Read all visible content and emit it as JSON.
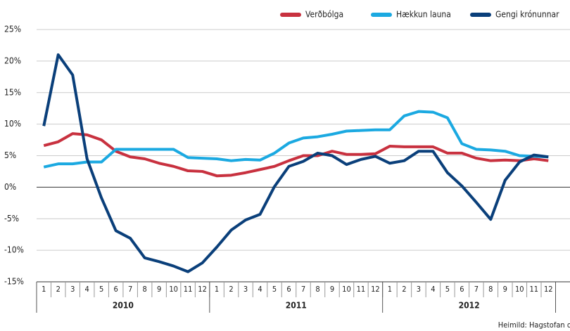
{
  "chart_data": {
    "type": "line",
    "source": "Heimild: Hagstofan og Seðlabankinn",
    "categories": [
      "1",
      "2",
      "3",
      "4",
      "5",
      "6",
      "7",
      "8",
      "9",
      "10",
      "11",
      "12",
      "1",
      "2",
      "3",
      "4",
      "5",
      "6",
      "7",
      "8",
      "9",
      "10",
      "11",
      "12",
      "1",
      "2",
      "3",
      "4",
      "5",
      "6",
      "7",
      "8",
      "9",
      "10",
      "11",
      "12",
      null
    ],
    "groups": [
      "2010",
      "2011",
      "2012"
    ],
    "ylim": [
      -15,
      25
    ],
    "yticks": [
      {
        "value": -15,
        "label": "-15%"
      },
      {
        "value": -10,
        "label": "-10%"
      },
      {
        "value": -5,
        "label": "-5%"
      },
      {
        "value": 0,
        "label": "0%"
      },
      {
        "value": 5,
        "label": "5%"
      },
      {
        "value": 10,
        "label": "10%"
      },
      {
        "value": 15,
        "label": "15%"
      },
      {
        "value": 20,
        "label": "20%"
      },
      {
        "value": 25,
        "label": "25%"
      }
    ],
    "grid": true,
    "legend": "top-right",
    "series": [
      {
        "name": "Verðbólga",
        "color": "#c8313f",
        "values": [
          6.6,
          7.2,
          8.5,
          8.3,
          7.5,
          5.7,
          4.8,
          4.5,
          3.8,
          3.3,
          2.6,
          2.5,
          1.8,
          1.9,
          2.3,
          2.8,
          3.3,
          4.2,
          5.0,
          5.0,
          5.7,
          5.2,
          5.2,
          5.3,
          6.5,
          6.4,
          6.4,
          6.4,
          5.4,
          5.4,
          4.6,
          4.2,
          4.3,
          4.2,
          4.5,
          4.2,
          null
        ]
      },
      {
        "name": "Hækkun launa",
        "color": "#1ba9e1",
        "values": [
          3.2,
          3.7,
          3.7,
          4.0,
          4.0,
          6.0,
          6.0,
          6.0,
          6.0,
          6.0,
          4.7,
          4.6,
          4.5,
          4.2,
          4.4,
          4.3,
          5.4,
          7.0,
          7.8,
          8.0,
          8.4,
          8.9,
          9.0,
          9.1,
          9.1,
          11.3,
          12.0,
          11.9,
          11.0,
          6.9,
          6.0,
          5.9,
          5.7,
          5.0,
          4.9,
          4.8,
          null
        ]
      },
      {
        "name": "Gengi krónunnar",
        "color": "#0a3f7a",
        "values": [
          9.7,
          21.0,
          17.8,
          4.5,
          -1.7,
          -6.9,
          -8.1,
          -11.2,
          -11.8,
          -12.5,
          -13.4,
          -12.0,
          -9.5,
          -6.8,
          -5.2,
          -4.3,
          0.1,
          3.3,
          4.1,
          5.4,
          5.0,
          3.6,
          4.4,
          4.9,
          3.8,
          4.2,
          5.7,
          5.7,
          2.3,
          0.2,
          -2.4,
          -5.1,
          1.1,
          4.0,
          5.1,
          4.8,
          null
        ]
      }
    ]
  }
}
